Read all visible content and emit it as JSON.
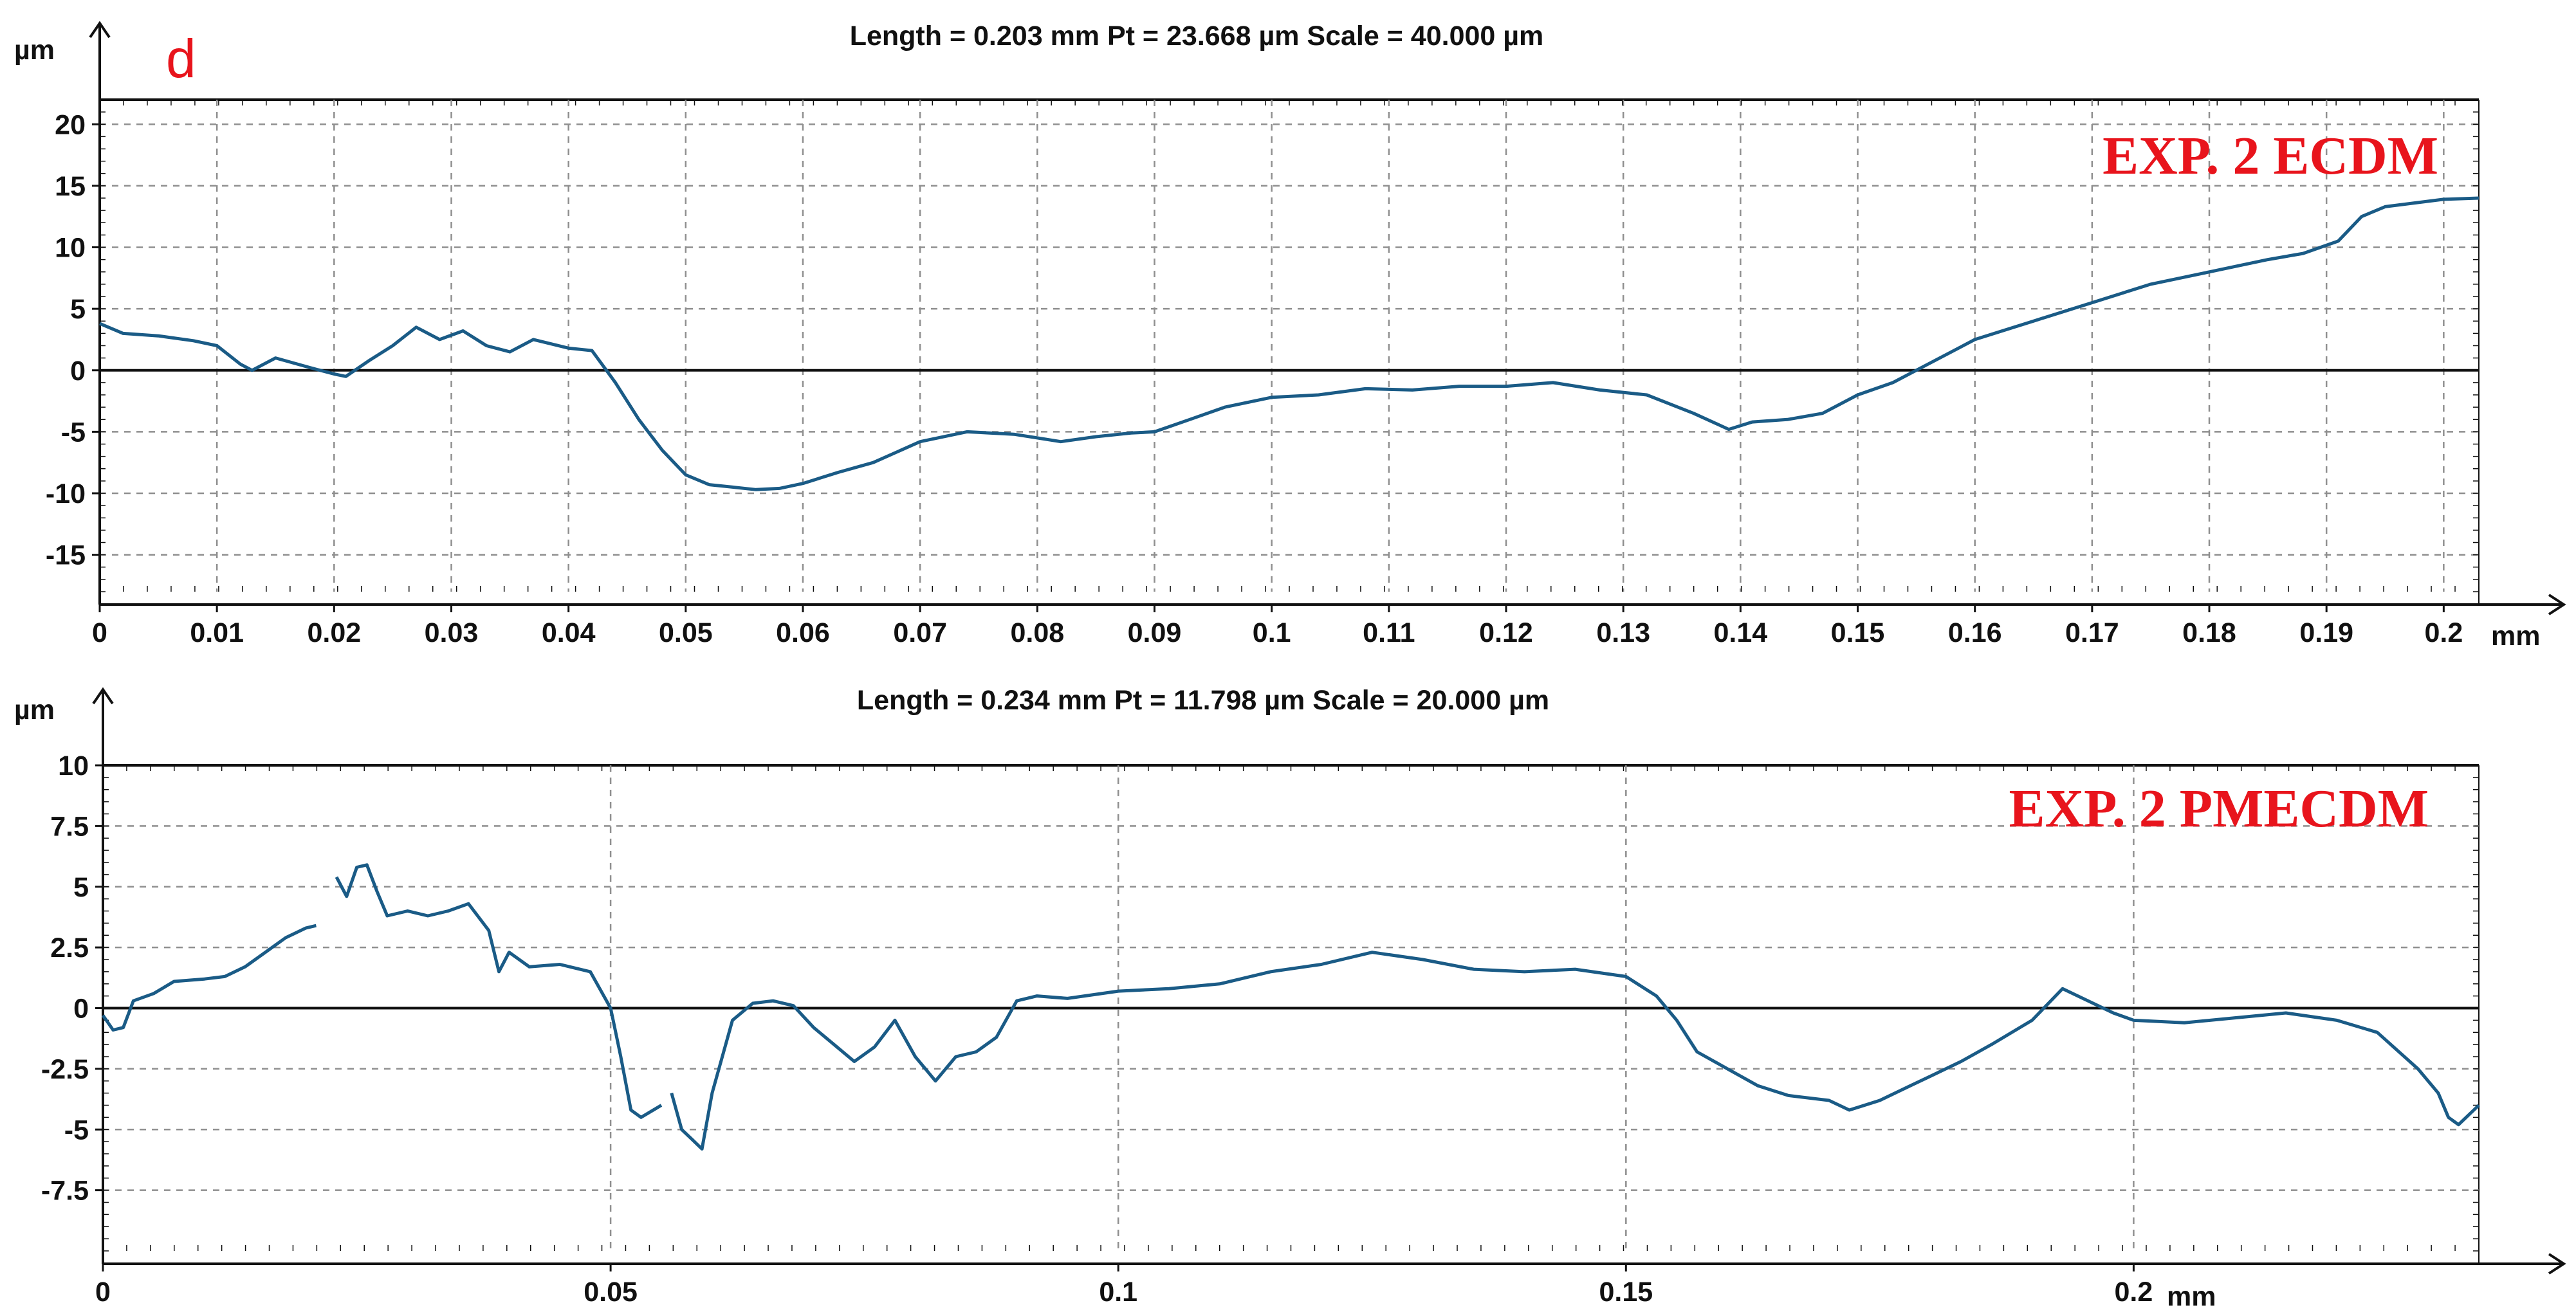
{
  "panel_letter": "d",
  "colors": {
    "profile": "#1a5b86",
    "label": "#e8141c",
    "grid": "#8f8f8f",
    "axis": "#111111"
  },
  "chart_data": [
    {
      "type": "line",
      "header": "Length = 0.203 mm  Pt = 23.668 µm  Scale = 40.000 µm",
      "label": "EXP. 2 ECDM",
      "y_unit": "µm",
      "x_unit": "mm",
      "xlim": [
        0,
        0.203
      ],
      "ylim": [
        -18,
        22
      ],
      "x_ticks": [
        0,
        0.01,
        0.02,
        0.03,
        0.04,
        0.05,
        0.06,
        0.07,
        0.08,
        0.09,
        0.1,
        0.11,
        0.12,
        0.13,
        0.14,
        0.15,
        0.16,
        0.17,
        0.18,
        0.19,
        0.2
      ],
      "x_tick_labels": [
        "0",
        "0.01",
        "0.02",
        "0.03",
        "0.04",
        "0.05",
        "0.06",
        "0.07",
        "0.08",
        "0.09",
        "0.1",
        "0.11",
        "0.12",
        "0.13",
        "0.14",
        "0.15",
        "0.16",
        "0.17",
        "0.18",
        "0.19",
        "0.2"
      ],
      "y_ticks": [
        20,
        15,
        10,
        5,
        0,
        -5,
        -10,
        -15
      ],
      "y_tick_labels": [
        "20",
        "15",
        "10",
        "5",
        "0",
        "-5",
        "-10",
        "-15"
      ],
      "zero_line": true,
      "grid": true,
      "series": [
        {
          "x": [
            0,
            0.002,
            0.005,
            0.008,
            0.01,
            0.012,
            0.013,
            0.015,
            0.018,
            0.02,
            0.021,
            0.023,
            0.025,
            0.027,
            0.029,
            0.031,
            0.033,
            0.035,
            0.037,
            0.04,
            0.042,
            0.044,
            0.046,
            0.048,
            0.05,
            0.052,
            0.054,
            0.056,
            0.058,
            0.06,
            0.063,
            0.066,
            0.07,
            0.074,
            0.078,
            0.08,
            0.082,
            0.085,
            0.088,
            0.09,
            0.093,
            0.096,
            0.1,
            0.104,
            0.108,
            0.112,
            0.116,
            0.12,
            0.124,
            0.128,
            0.132,
            0.136,
            0.139,
            0.141,
            0.144,
            0.147,
            0.15,
            0.153,
            0.156,
            0.16,
            0.165,
            0.17,
            0.175,
            0.18,
            0.185,
            0.188,
            0.191,
            0.193,
            0.195,
            0.2,
            0.203
          ],
          "y": [
            3.8,
            3.0,
            2.8,
            2.4,
            2.0,
            0.5,
            0.0,
            1.0,
            0.2,
            -0.3,
            -0.5,
            0.8,
            2.0,
            3.5,
            2.5,
            3.2,
            2.0,
            1.5,
            2.5,
            1.8,
            1.6,
            -1.0,
            -4.0,
            -6.5,
            -8.5,
            -9.3,
            -9.5,
            -9.7,
            -9.6,
            -9.2,
            -8.3,
            -7.5,
            -5.8,
            -5.0,
            -5.2,
            -5.5,
            -5.8,
            -5.4,
            -5.1,
            -5.0,
            -4.0,
            -3.0,
            -2.2,
            -2.0,
            -1.5,
            -1.6,
            -1.3,
            -1.3,
            -1.0,
            -1.6,
            -2.0,
            -3.5,
            -4.8,
            -4.2,
            -4.0,
            -3.5,
            -2.0,
            -1.0,
            0.5,
            2.5,
            4.0,
            5.5,
            7.0,
            8.0,
            9.0,
            9.5,
            10.5,
            12.5,
            13.3,
            13.9,
            14.0
          ]
        }
      ]
    },
    {
      "type": "line",
      "header": "Length = 0.234 mm  Pt = 11.798 µm  Scale = 20.000 µm",
      "label": "EXP. 2 PMECDM",
      "y_unit": "µm",
      "x_unit": "mm",
      "xlim": [
        0,
        0.234
      ],
      "ylim": [
        -10,
        10
      ],
      "x_ticks": [
        0,
        0.05,
        0.1,
        0.15,
        0.2
      ],
      "x_tick_labels": [
        "0",
        "0.05",
        "0.1",
        "0.15",
        "0.2"
      ],
      "y_ticks": [
        10,
        7.5,
        5,
        2.5,
        0,
        -2.5,
        -5,
        -7.5
      ],
      "y_tick_labels": [
        "10",
        "7.5",
        "5",
        "2.5",
        "0",
        "-2.5",
        "-5",
        "-7.5"
      ],
      "zero_line": true,
      "grid": true,
      "series": [
        {
          "segments": [
            {
              "x": [
                0,
                0.001,
                0.002,
                0.003,
                0.005,
                0.007,
                0.01,
                0.012,
                0.014,
                0.016,
                0.018,
                0.02,
                0.021
              ],
              "y": [
                -0.3,
                -0.9,
                -0.8,
                0.3,
                0.6,
                1.1,
                1.2,
                1.3,
                1.7,
                2.3,
                2.9,
                3.3,
                3.4
              ]
            },
            {
              "x": [
                0.023,
                0.024,
                0.025,
                0.026,
                0.027,
                0.028,
                0.03,
                0.032,
                0.034,
                0.036,
                0.038,
                0.039,
                0.04,
                0.042,
                0.045,
                0.048,
                0.05,
                0.051,
                0.052,
                0.053,
                0.055
              ],
              "y": [
                5.4,
                4.6,
                5.8,
                5.9,
                4.8,
                3.8,
                4.0,
                3.8,
                4.0,
                4.3,
                3.2,
                1.5,
                2.3,
                1.7,
                1.8,
                1.5,
                0.0,
                -2.0,
                -4.2,
                -4.5,
                -4.0
              ]
            },
            {
              "x": [
                0.056,
                0.057,
                0.058,
                0.059,
                0.06,
                0.062,
                0.064,
                0.066,
                0.068,
                0.07,
                0.072,
                0.074,
                0.076,
                0.078,
                0.08,
                0.082,
                0.084,
                0.086,
                0.088,
                0.09,
                0.092,
                0.095,
                0.1,
                0.105,
                0.11,
                0.115,
                0.12,
                0.125,
                0.13,
                0.135,
                0.14,
                0.145,
                0.15,
                0.153,
                0.155,
                0.157,
                0.16,
                0.163,
                0.166,
                0.17,
                0.172,
                0.175,
                0.178,
                0.18,
                0.183,
                0.186,
                0.19,
                0.193,
                0.195,
                0.198,
                0.2,
                0.205,
                0.21,
                0.215,
                0.22,
                0.224,
                0.228,
                0.23,
                0.231,
                0.232,
                0.234
              ],
              "y": [
                -3.5,
                -5.0,
                -5.4,
                -5.8,
                -3.5,
                -0.5,
                0.2,
                0.3,
                0.1,
                -0.8,
                -1.5,
                -2.2,
                -1.6,
                -0.5,
                -2.0,
                -3.0,
                -2.0,
                -1.8,
                -1.2,
                0.3,
                0.5,
                0.4,
                0.7,
                0.8,
                1.0,
                1.5,
                1.8,
                2.3,
                2.0,
                1.6,
                1.5,
                1.6,
                1.3,
                0.5,
                -0.5,
                -1.8,
                -2.5,
                -3.2,
                -3.6,
                -3.8,
                -4.2,
                -3.8,
                -3.2,
                -2.8,
                -2.2,
                -1.5,
                -0.5,
                0.8,
                0.4,
                -0.2,
                -0.5,
                -0.6,
                -0.4,
                -0.2,
                -0.5,
                -1.0,
                -2.5,
                -3.5,
                -4.5,
                -4.8,
                -4.0
              ]
            }
          ]
        }
      ]
    }
  ]
}
